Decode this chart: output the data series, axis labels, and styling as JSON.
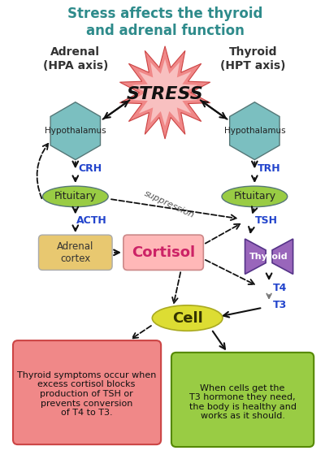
{
  "title": "Stress affects the thyroid\nand adrenal function",
  "title_color": "#2e8b8b",
  "bg_color": "#ffffff",
  "adrenal_label": "Adrenal\n(HPA axis)",
  "thyroid_label": "Thyroid\n(HPT axis)",
  "stress_text": "STRESS",
  "hex_color": "#7bbfc0",
  "pituitary_color": "#99cc44",
  "adrenal_cortex_color": "#e8c870",
  "cortisol_box_color": "#ffb8b8",
  "cortisol_text_color": "#cc2266",
  "thyroid_shape_color": "#9966bb",
  "cell_color": "#dddd33",
  "red_box_color": "#f08888",
  "green_box_color": "#99cc44",
  "blue_label_color": "#2244cc",
  "arrow_color": "#111111",
  "dashed_color": "#111111",
  "star_outer_color": "#f08888",
  "star_inner_color": "#f8c0c0"
}
